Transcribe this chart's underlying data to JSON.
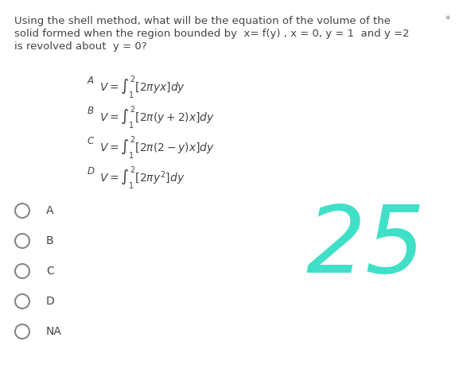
{
  "bg_color": "#ffffff",
  "question_line1": "Using the shell method, what will be the equation of the volume of the",
  "question_line2": "solid formed when the region bounded by  x= f(y) , x = 0, y = 1  and y =2",
  "question_line3": "is revolved about  y = 0?",
  "options": [
    {
      "label": "A",
      "formula": "$V = \\int_{1}^{2}\\left[2\\pi yx\\right]dy$"
    },
    {
      "label": "B",
      "formula": "$V = \\int_{1}^{2}\\left[2\\pi(y+2)x\\right]dy$"
    },
    {
      "label": "C",
      "formula": "$V = \\int_{1}^{2}\\left[2\\pi(2-y)x\\right]dy$"
    },
    {
      "label": "D",
      "formula": "$V = \\int_{1}^{2}\\left[2\\pi y^{2}\\right]dy$"
    }
  ],
  "radio_labels": [
    "A",
    "B",
    "C",
    "D",
    "NA"
  ],
  "number_text": "25",
  "number_color": "#40e0c8",
  "text_color": "#444444",
  "question_fontsize": 9.5,
  "option_label_fontsize": 8.5,
  "option_formula_fontsize": 10,
  "radio_fontsize": 10,
  "number_fontsize": 85,
  "star_color": "#888888"
}
